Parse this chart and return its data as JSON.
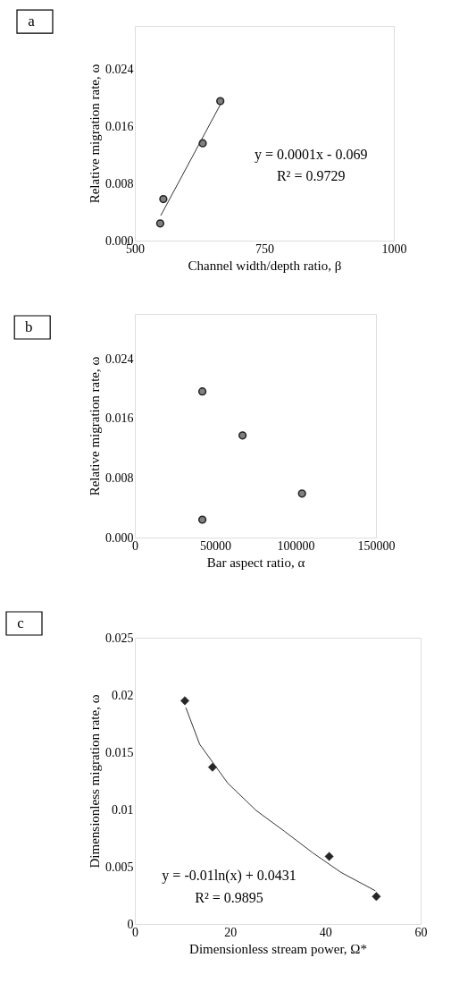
{
  "chart_data": [
    {
      "type": "scatter",
      "marker": "circle",
      "xlabel": "Channel width/depth ratio, β",
      "ylabel": "Relative  migration rate, ω",
      "xlim": [
        500,
        1000
      ],
      "xticks": [
        500,
        750,
        1000
      ],
      "ylim": [
        0,
        0.03
      ],
      "yticks": [
        {
          "value": 0,
          "label": "0.000"
        },
        {
          "value": 0.008,
          "label": "0.008"
        },
        {
          "value": 0.016,
          "label": "0.016"
        },
        {
          "value": 0.024,
          "label": "0.024"
        }
      ],
      "annotations": [
        "a",
        "y = 0.0001x  - 0.069",
        "R² = 0.9729"
      ],
      "series": [
        {
          "color": "#808080",
          "x": [
            549,
            555,
            631,
            665
          ],
          "values": [
            0.0024,
            0.0058,
            0.0136,
            0.0195
          ]
        },
        {
          "type": "line",
          "marker": "none",
          "color": "#333333",
          "x": [
            550,
            665
          ],
          "values": [
            0.0035,
            0.019
          ]
        }
      ]
    },
    {
      "type": "scatter",
      "marker": "circle",
      "xlabel": "Bar aspect ratio, α",
      "ylabel": "Relative migration rate, ω",
      "xlim": [
        0,
        150000
      ],
      "xticks": [
        0,
        50000,
        100000,
        150000
      ],
      "ylim": [
        0,
        0.03
      ],
      "yticks": [
        {
          "value": 0,
          "label": "0.000"
        },
        {
          "value": 0.008,
          "label": "0.008"
        },
        {
          "value": 0.016,
          "label": "0.016"
        },
        {
          "value": 0.024,
          "label": "0.024"
        }
      ],
      "annotations": [
        "b"
      ],
      "series": [
        {
          "color": "#808080",
          "x": [
            42000,
            67000,
            104000,
            42000
          ],
          "values": [
            0.0196,
            0.0137,
            0.0059,
            0.0024
          ]
        }
      ]
    },
    {
      "type": "scatter",
      "marker": "diamond",
      "xlabel": "Dimensionless stream power, Ω*",
      "ylabel": "Dimensionless migration rate, ω",
      "xlim": [
        0,
        60
      ],
      "xticks": [
        0,
        20,
        40,
        60
      ],
      "ylim": [
        0,
        0.025
      ],
      "yticks": [
        0,
        0.005,
        0.01,
        0.015,
        0.02,
        0.025
      ],
      "annotations": [
        "c",
        "y = -0.01ln(x) + 0.0431",
        "R² = 0.9895"
      ],
      "series": [
        {
          "color": "#262626",
          "x": [
            10.5,
            16.3,
            40.8,
            50.7
          ],
          "values": [
            0.0195,
            0.0137,
            0.0059,
            0.0024
          ]
        },
        {
          "type": "line",
          "marker": "none",
          "color": "#333333",
          "x": [
            10.7,
            13.6,
            19.5,
            25.5,
            31.4,
            37.4,
            43.3,
            50.5
          ],
          "values": [
            0.0189,
            0.0157,
            0.0123,
            0.0099,
            0.0081,
            0.0062,
            0.0045,
            0.0029
          ]
        }
      ]
    }
  ]
}
